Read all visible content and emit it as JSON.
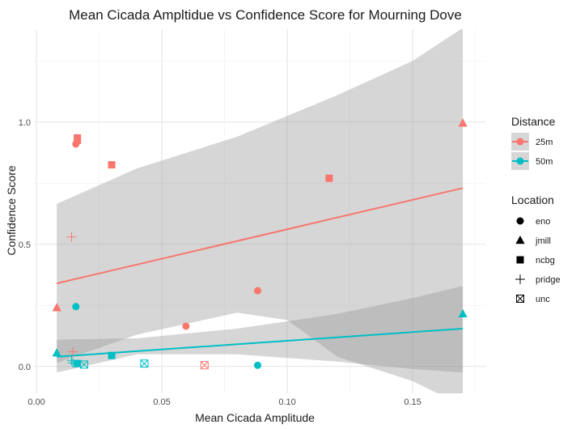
{
  "chart_data": {
    "type": "scatter",
    "title": "Mean Cicada Ampltidue vs Confidence Score for Mourning Dove",
    "xlabel": "Mean Cicada Amplitude",
    "ylabel": "Confidence Score",
    "xlim": [
      -0.001,
      0.179
    ],
    "ylim": [
      -0.11,
      1.38
    ],
    "x_ticks": [
      0.0,
      0.05,
      0.1,
      0.15
    ],
    "x_tick_labels": [
      "0.00",
      "0.05",
      "0.10",
      "0.15"
    ],
    "y_ticks": [
      0.0,
      0.5,
      1.0
    ],
    "y_tick_labels": [
      "0.0",
      "0.5",
      "1.0"
    ],
    "grid": true,
    "legend_placement": "right",
    "colors": {
      "25m": "#F8766D",
      "50m": "#00BFC4",
      "band": "#999999"
    },
    "color_legend": {
      "title": "Distance",
      "entries": [
        "25m",
        "50m"
      ]
    },
    "shape_legend": {
      "title": "Location",
      "entries": [
        "eno",
        "jmill",
        "ncbg",
        "pridge",
        "unc"
      ]
    },
    "series": [
      {
        "name": "25m",
        "points": [
          {
            "x": 0.0157,
            "y": 0.91,
            "shape": "eno"
          },
          {
            "x": 0.0596,
            "y": 0.165,
            "shape": "eno"
          },
          {
            "x": 0.0882,
            "y": 0.31,
            "shape": "eno"
          },
          {
            "x": 0.0081,
            "y": 0.24,
            "shape": "jmill"
          },
          {
            "x": 0.17,
            "y": 0.995,
            "shape": "jmill"
          },
          {
            "x": 0.0163,
            "y": 0.935,
            "shape": "ncbg"
          },
          {
            "x": 0.0163,
            "y": 0.925,
            "shape": "ncbg"
          },
          {
            "x": 0.03,
            "y": 0.825,
            "shape": "ncbg"
          },
          {
            "x": 0.1167,
            "y": 0.77,
            "shape": "ncbg"
          },
          {
            "x": 0.014,
            "y": 0.53,
            "shape": "pridge"
          },
          {
            "x": 0.0145,
            "y": 0.06,
            "shape": "pridge"
          },
          {
            "x": 0.067,
            "y": 0.005,
            "shape": "unc"
          }
        ],
        "trend": {
          "x": [
            0.0081,
            0.17
          ],
          "y": [
            0.34,
            0.73
          ]
        },
        "ci_upper": [
          [
            0.0081,
            0.665
          ],
          [
            0.04,
            0.81
          ],
          [
            0.08,
            0.94
          ],
          [
            0.12,
            1.11
          ],
          [
            0.15,
            1.25
          ],
          [
            0.17,
            1.385
          ]
        ],
        "ci_lower": [
          [
            0.0081,
            0.015
          ],
          [
            0.04,
            0.13
          ],
          [
            0.08,
            0.22
          ],
          [
            0.1,
            0.19
          ],
          [
            0.12,
            0.04
          ],
          [
            0.15,
            -0.06
          ],
          [
            0.17,
            -0.16
          ]
        ]
      },
      {
        "name": "50m",
        "points": [
          {
            "x": 0.0157,
            "y": 0.245,
            "shape": "eno"
          },
          {
            "x": 0.0882,
            "y": 0.005,
            "shape": "eno"
          },
          {
            "x": 0.0081,
            "y": 0.055,
            "shape": "jmill"
          },
          {
            "x": 0.17,
            "y": 0.215,
            "shape": "jmill"
          },
          {
            "x": 0.0163,
            "y": 0.012,
            "shape": "ncbg"
          },
          {
            "x": 0.03,
            "y": 0.045,
            "shape": "ncbg"
          },
          {
            "x": 0.014,
            "y": 0.025,
            "shape": "pridge"
          },
          {
            "x": 0.0145,
            "y": 0.015,
            "shape": "pridge"
          },
          {
            "x": 0.019,
            "y": 0.008,
            "shape": "unc"
          },
          {
            "x": 0.043,
            "y": 0.012,
            "shape": "unc"
          }
        ],
        "trend": {
          "x": [
            0.0081,
            0.17
          ],
          "y": [
            0.04,
            0.155
          ]
        },
        "ci_upper": [
          [
            0.0081,
            0.11
          ],
          [
            0.04,
            0.115
          ],
          [
            0.08,
            0.155
          ],
          [
            0.12,
            0.215
          ],
          [
            0.15,
            0.28
          ],
          [
            0.17,
            0.33
          ]
        ],
        "ci_lower": [
          [
            0.0081,
            -0.025
          ],
          [
            0.04,
            0.05
          ],
          [
            0.08,
            0.05
          ],
          [
            0.12,
            0.02
          ],
          [
            0.15,
            -0.01
          ],
          [
            0.17,
            -0.025
          ]
        ]
      }
    ]
  }
}
